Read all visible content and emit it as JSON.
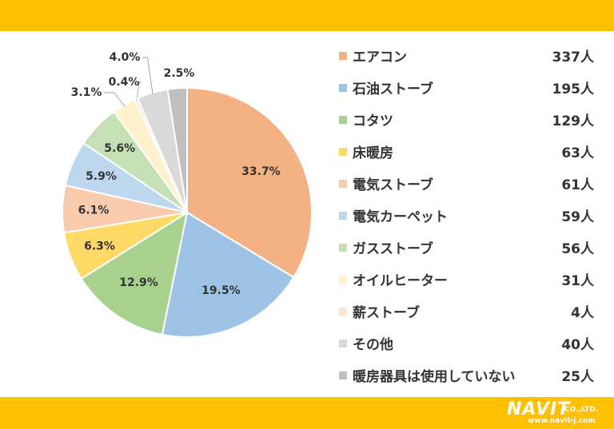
{
  "chart_data": {
    "type": "pie",
    "start_angle_deg": 0,
    "direction": "clockwise",
    "legend_position": "right",
    "categories": [
      "エアコン",
      "石油ストーブ",
      "コタツ",
      "床暖房",
      "電気ストーブ",
      "電気カーペット",
      "ガスストーブ",
      "オイルヒーター",
      "薪ストーブ",
      "その他",
      "暖房器具は使用していない"
    ],
    "percent_labels": [
      "33.7%",
      "19.5%",
      "12.9%",
      "6.3%",
      "6.1%",
      "5.9%",
      "5.6%",
      "3.1%",
      "0.4%",
      "4.0%",
      "2.5%"
    ],
    "values": [
      33.7,
      19.5,
      12.9,
      6.3,
      6.1,
      5.9,
      5.6,
      3.1,
      0.4,
      4.0,
      2.5
    ],
    "counts": [
      "337人",
      "195人",
      "129人",
      "63人",
      "61人",
      "59人",
      "56人",
      "31人",
      "4人",
      "40人",
      "25人"
    ],
    "colors": [
      "#F4B183",
      "#9DC3E6",
      "#A9D18E",
      "#FFD966",
      "#F8CBAD",
      "#BDD7EE",
      "#C5E0B4",
      "#FFF2CC",
      "#FBE5D6",
      "#D9D9D9",
      "#BFBFBF"
    ],
    "slice_stroke": "#ffffff"
  },
  "logo": {
    "main": "NAVIT",
    "suffix": "CO.,LTD.",
    "url": "www.navit-j.com"
  }
}
